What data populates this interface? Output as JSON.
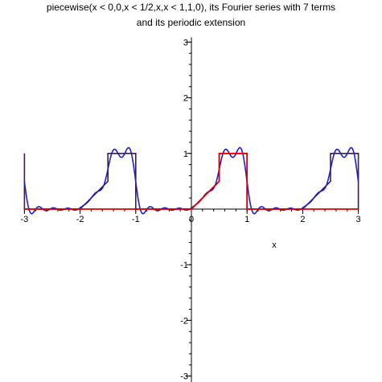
{
  "chart_data": {
    "type": "line",
    "title_lines": [
      "piecewise(x < 0,0,x < 1/2,x,x < 1,1,0), its Fourier series with 7 terms",
      "and its periodic extension"
    ],
    "xlabel": "x",
    "ylabel": "",
    "xlim": [
      -3,
      3
    ],
    "ylim": [
      -3,
      3
    ],
    "x_ticks": [
      -3,
      -2,
      -1,
      0,
      1,
      2,
      3
    ],
    "y_ticks": [
      -3,
      -2,
      -1,
      1,
      2,
      3
    ],
    "x_tick_labels": [
      "-3",
      "-2",
      "-1",
      "0",
      "1",
      "2",
      "3"
    ],
    "y_tick_labels": [
      "-3",
      "-2",
      "-1",
      "1",
      "2",
      "3"
    ],
    "series": [
      {
        "role": "periodic-extension",
        "color": "#3a1f3a",
        "period": 2,
        "piecewise": [
          {
            "from": 0,
            "to": 0.5,
            "y": "x"
          },
          {
            "from": 0.5,
            "to": 1,
            "y": 1
          },
          {
            "from": 1,
            "to": 2,
            "y": 0
          }
        ]
      },
      {
        "role": "fourier-series",
        "color": "#1f1fcc",
        "terms": 7,
        "period": 2
      },
      {
        "role": "original-function",
        "color": "#dd0000",
        "domain": [
          -3,
          3
        ],
        "piecewise": [
          {
            "from": -3,
            "to": 0,
            "y": 0
          },
          {
            "from": 0,
            "to": 0.5,
            "y": "x"
          },
          {
            "from": 0.5,
            "to": 1,
            "y": 1
          },
          {
            "from": 1,
            "to": 3,
            "y": 0
          }
        ]
      }
    ]
  }
}
